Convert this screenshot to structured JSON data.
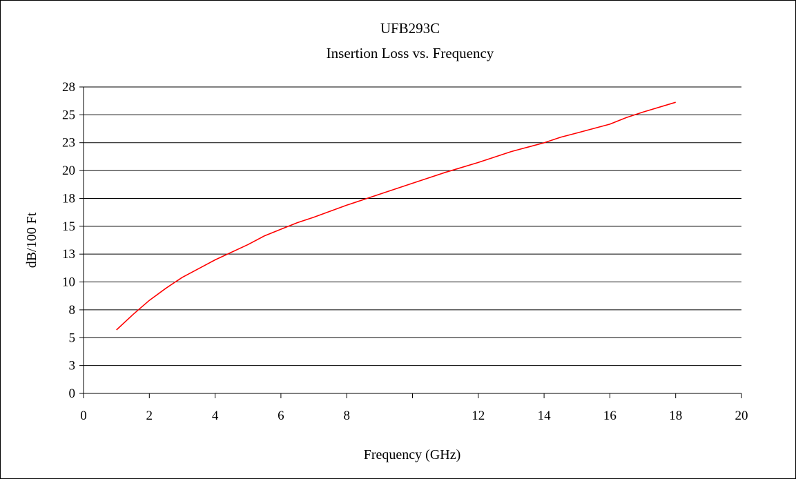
{
  "chart_data": {
    "type": "line",
    "title": "UFB293C",
    "subtitle": "Insertion Loss vs. Frequency",
    "xlabel": "Frequency (GHz)",
    "ylabel": "dB/100 Ft",
    "xlim": [
      0,
      20
    ],
    "ylim": [
      0,
      28
    ],
    "x_ticks": [
      "0",
      "2",
      "4",
      "6",
      "8",
      "12",
      "14",
      "16",
      "18",
      "20"
    ],
    "y_ticks": [
      "0",
      "3",
      "5",
      "8",
      "10",
      "13",
      "15",
      "18",
      "20",
      "23",
      "25",
      "28"
    ],
    "grid": "horizontal",
    "legend": "none",
    "colors": {
      "line": "#ff0000",
      "grid": "#000000",
      "background": "#ffffff"
    },
    "series": [
      {
        "x": [
          1,
          1.5,
          2,
          2.5,
          3,
          3.5,
          4,
          5,
          5.5,
          6,
          6.5,
          7,
          8,
          9,
          10,
          11,
          12,
          13,
          14,
          14.5,
          15,
          16,
          16.5,
          17,
          18
        ],
        "y": [
          5.8,
          7.2,
          8.5,
          9.6,
          10.6,
          11.4,
          12.2,
          13.6,
          14.4,
          15.0,
          15.6,
          16.1,
          17.2,
          18.2,
          19.2,
          20.2,
          21.1,
          22.1,
          22.9,
          23.4,
          23.8,
          24.6,
          25.2,
          25.7,
          26.6
        ]
      }
    ]
  }
}
